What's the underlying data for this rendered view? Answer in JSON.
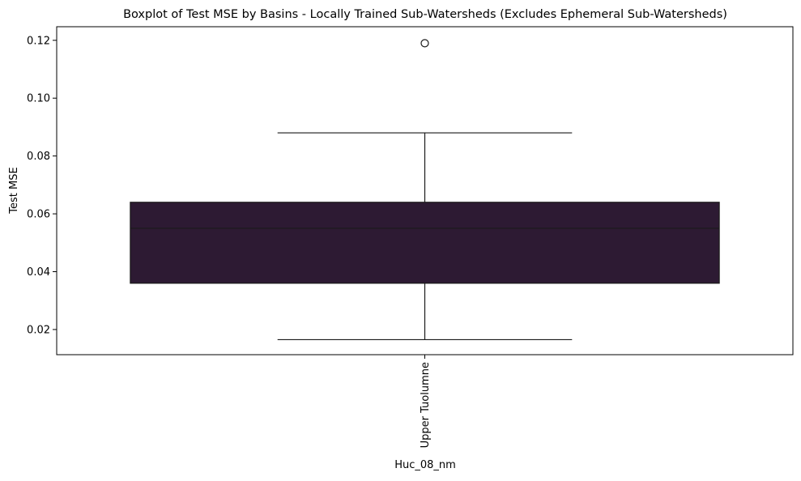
{
  "chart_data": {
    "type": "box",
    "title": "Boxplot of Test MSE by Basins - Locally Trained Sub-Watersheds (Excludes Ephemeral Sub-Watersheds)",
    "xlabel": "Huc_08_nm",
    "ylabel": "Test MSE",
    "categories": [
      "Upper Tuolumne"
    ],
    "boxes": [
      {
        "category": "Upper Tuolumne",
        "whisker_low": 0.0165,
        "q1": 0.036,
        "median": 0.055,
        "q3": 0.064,
        "whisker_high": 0.088,
        "outliers": [
          0.119
        ]
      }
    ],
    "y_ticks": [
      0.02,
      0.04,
      0.06,
      0.08,
      0.1,
      0.12
    ],
    "y_tick_labels": [
      "0.02",
      "0.04",
      "0.06",
      "0.08",
      "0.10",
      "0.12"
    ],
    "ylim": [
      0.0113,
      0.1247
    ],
    "grid": false,
    "legend": "none",
    "colors": {
      "box_fill": "#2d1a33",
      "line": "#1a1a1a"
    }
  }
}
